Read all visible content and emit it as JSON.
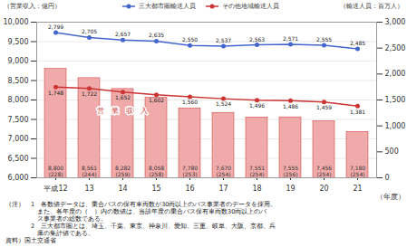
{
  "chart_data": {
    "type": "bar",
    "categories": [
      "平成12",
      "13",
      "14",
      "15",
      "16",
      "17",
      "18",
      "19",
      "20",
      "21"
    ],
    "x_label": "（年度）",
    "y_label": "（営業収入：億円）",
    "y2_label": "（輸送人員：百万人）",
    "ylim": [
      6000,
      10000
    ],
    "yticks": [
      {
        "value": 6000,
        "label": "6,000"
      },
      {
        "value": 6500,
        "label": "6,500"
      },
      {
        "value": 7000,
        "label": "7,000"
      },
      {
        "value": 7500,
        "label": "7,500"
      },
      {
        "value": 8000,
        "label": "8,000"
      },
      {
        "value": 8500,
        "label": "8,500"
      },
      {
        "value": 9000,
        "label": "9,000"
      },
      {
        "value": 9500,
        "label": "9,500"
      },
      {
        "value": 10000,
        "label": "10,000"
      }
    ],
    "y2lim": [
      0,
      3000
    ],
    "y2ticks": [
      0,
      500,
      {
        "value": 1000,
        "label": "1,000"
      },
      {
        "value": 1500,
        "label": "1,500"
      },
      {
        "value": 2000,
        "label": "2,000"
      },
      {
        "value": 2500,
        "label": "2,500"
      },
      {
        "value": 3000,
        "label": "3,000"
      }
    ],
    "grid": true,
    "legend": "top",
    "data_labels": true,
    "series": [
      {
        "name": "営　業　収　入",
        "type": "bar",
        "color": "#f0aaaa",
        "values": [
          8800,
          8561,
          8282,
          8058,
          7780,
          7670,
          7551,
          7555,
          7456,
          7180
        ],
        "value_labels": [
          "8,800",
          "8,561",
          "8,282",
          "8,058",
          "7,780",
          "7,670",
          "7,551",
          "7,555",
          "7,456",
          "7,180"
        ],
        "operator_labels": [
          "(228)",
          "(244)",
          "(259)",
          "(258)",
          "(253)",
          "(254)",
          "(254)",
          "(256)",
          "(254)",
          "(254)"
        ]
      },
      {
        "name": "三大都市圏輸送人員",
        "type": "line",
        "axis": "y2",
        "color": "#4466cc",
        "marker": "circle",
        "values": [
          2799,
          2705,
          2657,
          2635,
          2550,
          2537,
          2563,
          2571,
          2555,
          2485
        ],
        "value_labels": [
          "2,799",
          "2,705",
          "2,657",
          "2,635",
          "2,550",
          "2,537",
          "2,563",
          "2,571",
          "2,555",
          "2,485"
        ]
      },
      {
        "name": "その他地域輸送人員",
        "type": "line",
        "axis": "y2",
        "color": "#cc3333",
        "marker": "circle",
        "values": [
          1748,
          1722,
          1652,
          1602,
          1560,
          1524,
          1496,
          1486,
          1459,
          1381
        ],
        "value_labels": [
          "1,748",
          "1,722",
          "1,652",
          "1,602",
          "1,560",
          "1,524",
          "1,496",
          "1,486",
          "1,459",
          "1,381"
        ]
      }
    ],
    "notes": [
      "（注）　1　各数値データは、乗合バスの保有車両数が30両以上のバス事業者のデータを採用。",
      "　　　　　また、各年度の（　）内の数値は、当該年度の乗合バス保有車両数30両以上のバ",
      "　　　　　ス事業者の総数である。",
      "　　　　2　三大都市圏とは、埼玉、千葉、東京、神奈川、愛知、三重、岐阜、大阪、京都、兵",
      "　　　　　庫の集計値である。",
      "資料）国土交通省"
    ]
  }
}
